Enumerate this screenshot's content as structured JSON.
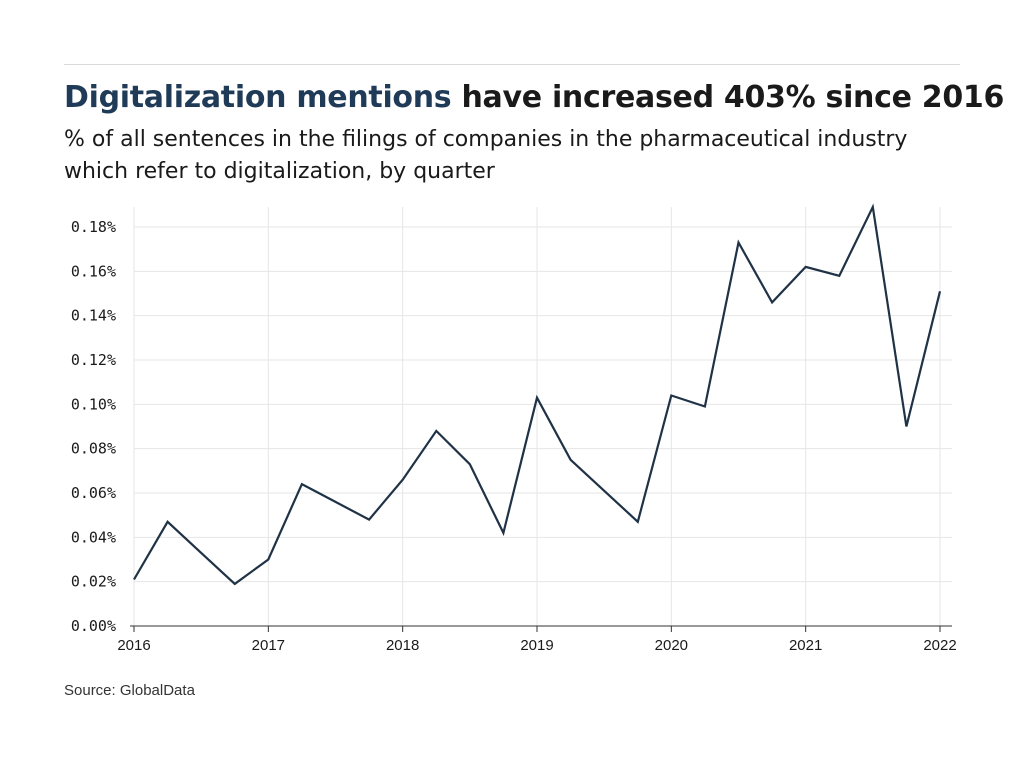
{
  "header": {
    "title_highlight": "Digitalization mentions",
    "title_rest": " have increased 403% since 2016",
    "subtitle": "% of all sentences in the filings of companies in the pharmaceutical industry which refer to digitalization, by quarter"
  },
  "footer": {
    "source": "Source: GlobalData"
  },
  "colors": {
    "line": "#1f3246",
    "title_highlight": "#1f3b57",
    "grid": "#e6e6e6",
    "axis": "#333333"
  },
  "chart_data": {
    "type": "line",
    "title": "Digitalization mentions have increased 403% since 2016",
    "subtitle": "% of all sentences in the filings of companies in the pharmaceutical industry which refer to digitalization, by quarter",
    "xlabel": "",
    "ylabel": "",
    "x_ticks": [
      "2016",
      "2017",
      "2018",
      "2019",
      "2020",
      "2021",
      "2022"
    ],
    "y_ticks": [
      "0.00%",
      "0.02%",
      "0.04%",
      "0.06%",
      "0.08%",
      "0.10%",
      "0.12%",
      "0.14%",
      "0.16%",
      "0.18%"
    ],
    "ylim": [
      0,
      0.18
    ],
    "xlim": [
      2016,
      2022
    ],
    "grid": true,
    "series": [
      {
        "x": [
          "2016-Q1",
          "2016-Q2",
          "2016-Q3",
          "2016-Q4",
          "2017-Q1",
          "2017-Q2",
          "2017-Q3",
          "2017-Q4",
          "2018-Q1",
          "2018-Q2",
          "2018-Q3",
          "2018-Q4",
          "2019-Q1",
          "2019-Q2",
          "2019-Q3",
          "2019-Q4",
          "2020-Q1",
          "2020-Q2",
          "2020-Q3",
          "2020-Q4",
          "2021-Q1",
          "2021-Q2",
          "2021-Q3",
          "2021-Q4",
          "2022-Q1"
        ],
        "values": [
          0.021,
          0.047,
          0.033,
          0.019,
          0.03,
          0.064,
          0.056,
          0.048,
          0.066,
          0.088,
          0.073,
          0.042,
          0.103,
          0.075,
          0.061,
          0.047,
          0.104,
          0.099,
          0.173,
          0.146,
          0.162,
          0.158,
          0.189,
          0.09,
          0.151
        ]
      }
    ]
  }
}
